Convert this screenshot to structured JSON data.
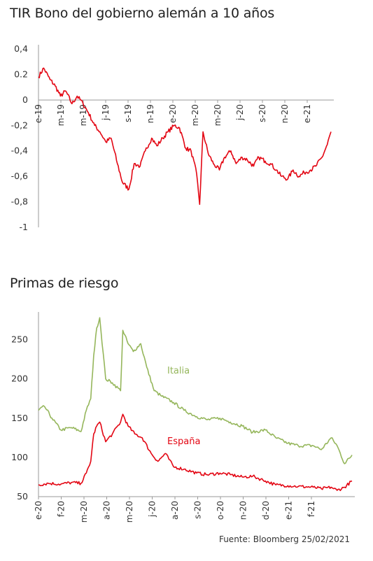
{
  "chart_data": [
    {
      "type": "line",
      "title": "TIR Bono del gobierno alemán a 10 años",
      "y_tick_labels": [
        "0,4",
        "0.2",
        "0",
        "-0,2",
        "-0,4",
        "-0,6",
        "-0,8",
        "-1"
      ],
      "y_ticks": [
        0.4,
        0.2,
        0,
        -0.2,
        -0.4,
        -0.6,
        -0.8,
        -1
      ],
      "ylim": [
        -1,
        0.4
      ],
      "x_tick_labels": [
        "e-19",
        "m-19",
        "m-19",
        "j-19",
        "s-19",
        "n-19",
        "e-20",
        "m-20",
        "m-20",
        "j-20",
        "s-20",
        "n-20",
        "e-21"
      ],
      "grid": false,
      "series": [
        {
          "color": "#e30613",
          "x": [
            "2019-01-01",
            "2019-01-15",
            "2019-02-01",
            "2019-02-15",
            "2019-03-01",
            "2019-03-15",
            "2019-04-01",
            "2019-04-15",
            "2019-05-01",
            "2019-05-15",
            "2019-06-01",
            "2019-06-15",
            "2019-07-01",
            "2019-07-15",
            "2019-08-01",
            "2019-08-15",
            "2019-09-01",
            "2019-09-15",
            "2019-10-01",
            "2019-10-15",
            "2019-11-01",
            "2019-11-15",
            "2019-12-01",
            "2019-12-15",
            "2020-01-01",
            "2020-01-15",
            "2020-02-01",
            "2020-02-15",
            "2020-03-01",
            "2020-03-09",
            "2020-03-18",
            "2020-04-01",
            "2020-04-15",
            "2020-05-01",
            "2020-05-15",
            "2020-06-01",
            "2020-06-15",
            "2020-07-01",
            "2020-07-15",
            "2020-08-01",
            "2020-08-15",
            "2020-09-01",
            "2020-09-15",
            "2020-10-01",
            "2020-10-15",
            "2020-11-01",
            "2020-11-15",
            "2020-12-01",
            "2020-12-15",
            "2021-01-01",
            "2021-01-15",
            "2021-02-01",
            "2021-02-15",
            "2021-02-25"
          ],
          "values": [
            0.18,
            0.25,
            0.16,
            0.11,
            0.03,
            0.07,
            -0.03,
            0.03,
            -0.03,
            -0.1,
            -0.2,
            -0.25,
            -0.33,
            -0.3,
            -0.5,
            -0.65,
            -0.7,
            -0.5,
            -0.52,
            -0.4,
            -0.3,
            -0.36,
            -0.3,
            -0.25,
            -0.2,
            -0.22,
            -0.38,
            -0.4,
            -0.58,
            -0.82,
            -0.25,
            -0.42,
            -0.5,
            -0.55,
            -0.45,
            -0.4,
            -0.5,
            -0.45,
            -0.47,
            -0.52,
            -0.45,
            -0.48,
            -0.5,
            -0.55,
            -0.6,
            -0.62,
            -0.55,
            -0.6,
            -0.57,
            -0.55,
            -0.52,
            -0.45,
            -0.35,
            -0.25
          ]
        }
      ]
    },
    {
      "type": "line",
      "title": "Primas de riesgo",
      "y_ticks": [
        250,
        200,
        150,
        100,
        50
      ],
      "ylim": [
        50,
        280
      ],
      "x_tick_labels": [
        "e-20",
        "f-20",
        "m-20",
        "a-20",
        "m-20",
        "j-20",
        "a-20",
        "s-20",
        "o-20",
        "n-20",
        "d-20",
        "e-21",
        "f-21"
      ],
      "grid": false,
      "series": [
        {
          "name": "Italia",
          "color": "#95b65b",
          "x": [
            "2020-01-02",
            "2020-01-10",
            "2020-01-20",
            "2020-02-01",
            "2020-02-15",
            "2020-02-28",
            "2020-03-06",
            "2020-03-12",
            "2020-03-16",
            "2020-03-20",
            "2020-03-24",
            "2020-04-01",
            "2020-04-10",
            "2020-04-21",
            "2020-04-24",
            "2020-05-01",
            "2020-05-08",
            "2020-05-18",
            "2020-05-26",
            "2020-06-05",
            "2020-06-15",
            "2020-07-01",
            "2020-07-15",
            "2020-08-01",
            "2020-08-15",
            "2020-09-01",
            "2020-09-15",
            "2020-10-01",
            "2020-10-15",
            "2020-11-01",
            "2020-11-15",
            "2020-12-01",
            "2020-12-15",
            "2021-01-04",
            "2021-01-15",
            "2021-01-28",
            "2021-02-05",
            "2021-02-15",
            "2021-02-25"
          ],
          "values": [
            160,
            165,
            150,
            135,
            138,
            133,
            160,
            175,
            230,
            265,
            278,
            200,
            195,
            185,
            262,
            245,
            235,
            245,
            215,
            185,
            178,
            170,
            160,
            152,
            148,
            150,
            145,
            140,
            132,
            135,
            125,
            118,
            115,
            115,
            110,
            125,
            115,
            92,
            103
          ]
        },
        {
          "name": "España",
          "color": "#e30613",
          "x": [
            "2020-01-02",
            "2020-01-15",
            "2020-02-01",
            "2020-02-15",
            "2020-02-28",
            "2020-03-06",
            "2020-03-12",
            "2020-03-16",
            "2020-03-20",
            "2020-03-24",
            "2020-04-01",
            "2020-04-10",
            "2020-04-21",
            "2020-04-24",
            "2020-05-01",
            "2020-05-10",
            "2020-05-20",
            "2020-06-01",
            "2020-06-10",
            "2020-06-20",
            "2020-07-01",
            "2020-07-15",
            "2020-08-01",
            "2020-08-15",
            "2020-09-01",
            "2020-09-15",
            "2020-10-01",
            "2020-10-15",
            "2020-11-01",
            "2020-11-15",
            "2020-12-01",
            "2020-12-15",
            "2021-01-04",
            "2021-01-15",
            "2021-01-28",
            "2021-02-05",
            "2021-02-15",
            "2021-02-25"
          ],
          "values": [
            65,
            67,
            66,
            68,
            67,
            80,
            95,
            130,
            140,
            145,
            120,
            130,
            145,
            155,
            140,
            130,
            125,
            105,
            95,
            105,
            88,
            85,
            80,
            78,
            80,
            78,
            75,
            76,
            70,
            65,
            64,
            63,
            62,
            60,
            62,
            58,
            62,
            70
          ]
        }
      ]
    }
  ],
  "source": "Fuente: Bloomberg 25/02/2021"
}
